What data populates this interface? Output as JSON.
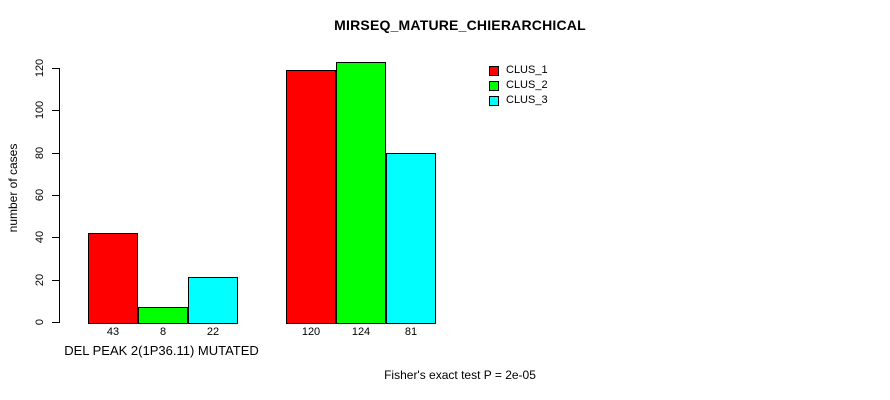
{
  "chart_data": {
    "type": "bar",
    "title": "MIRSEQ_MATURE_CHIERARCHICAL",
    "ylabel": "number of cases",
    "xlabel": "DEL PEAK 2(1P36.11) MUTATED",
    "note": "Fisher's exact test P = 2e-05",
    "ylim": [
      0,
      120
    ],
    "yticks": [
      0,
      20,
      40,
      60,
      80,
      100,
      120
    ],
    "grid": false,
    "legend_position": "top-right",
    "groups": 2,
    "series": [
      {
        "name": "CLUS_1",
        "color": "#ff0000",
        "values": [
          43,
          120
        ]
      },
      {
        "name": "CLUS_2",
        "color": "#00ff00",
        "values": [
          8,
          124
        ]
      },
      {
        "name": "CLUS_3",
        "color": "#00ffff",
        "values": [
          22,
          81
        ]
      }
    ],
    "bar_value_labels": [
      [
        43,
        8,
        22
      ],
      [
        120,
        124,
        81
      ]
    ]
  }
}
